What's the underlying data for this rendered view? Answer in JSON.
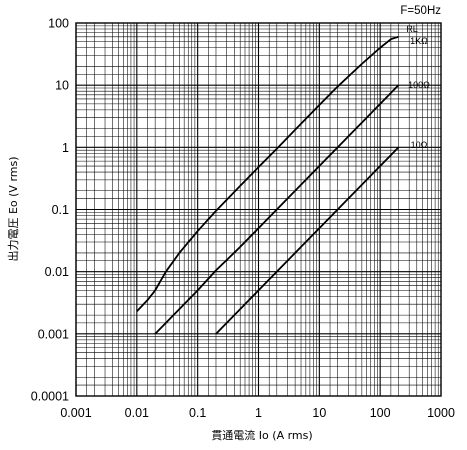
{
  "chart_data": {
    "type": "line",
    "annotation": "F=50Hz",
    "xlabel": "貫通電流 Io (A rms)",
    "ylabel": "出力電圧 Eo (V rms)",
    "x_scale": "log",
    "y_scale": "log",
    "xlim": [
      0.001,
      1000
    ],
    "ylim": [
      0.0001,
      100
    ],
    "grid": true,
    "x_ticks": [
      "0.001",
      "0.01",
      "0.1",
      "1",
      "10",
      "100",
      "1000"
    ],
    "y_ticks": [
      "100",
      "10",
      "1",
      "0.1",
      "0.01",
      "0.001",
      "0.0001"
    ],
    "series": [
      {
        "name": "1KΩ",
        "legend_prefix": "RL",
        "x": [
          0.01,
          0.015,
          0.02,
          0.03,
          0.05,
          0.1,
          0.2,
          0.5,
          1,
          2,
          5,
          10,
          20,
          50,
          100,
          150,
          200
        ],
        "y": [
          0.0023,
          0.0035,
          0.005,
          0.01,
          0.02,
          0.045,
          0.095,
          0.24,
          0.48,
          0.95,
          2.4,
          4.8,
          9.5,
          22,
          40,
          55,
          60
        ]
      },
      {
        "name": "100Ω",
        "x": [
          0.02,
          0.05,
          0.1,
          0.2,
          0.5,
          1,
          2,
          5,
          10,
          20,
          50,
          100,
          200
        ],
        "y": [
          0.001,
          0.0025,
          0.005,
          0.0105,
          0.025,
          0.05,
          0.1,
          0.25,
          0.5,
          1,
          2.5,
          5,
          10
        ]
      },
      {
        "name": "10Ω",
        "x": [
          0.2,
          0.5,
          1,
          2,
          5,
          10,
          20,
          50,
          100,
          200
        ],
        "y": [
          0.001,
          0.0025,
          0.005,
          0.01,
          0.025,
          0.05,
          0.1,
          0.25,
          0.5,
          1
        ]
      }
    ]
  }
}
